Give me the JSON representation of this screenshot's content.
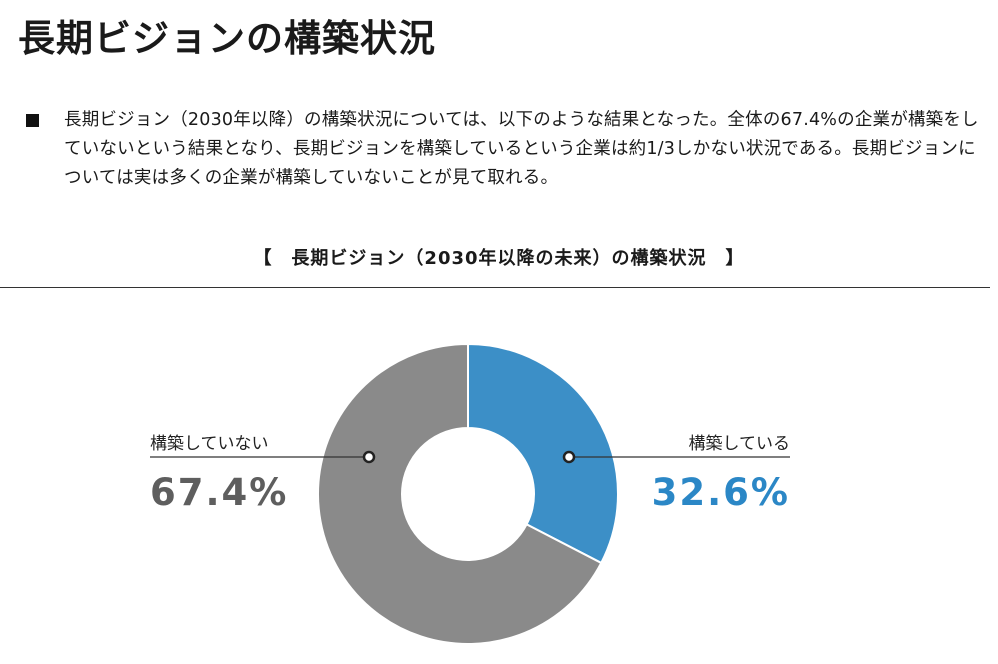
{
  "page": {
    "title": "長期ビジョンの構築状況",
    "summary": "長期ビジョン（2030年以降）の構築状況については、以下のような結果となった。全体の67.4%の企業が構築をしていないという結果となり、長期ビジョンを構築しているという企業は約1/3しかない状況である。長期ビジョンについては実は多くの企業が構築していないことが見て取れる。"
  },
  "chart_data": {
    "type": "pie",
    "title": "【　長期ビジョン（2030年以降の未来）の構築状況　】",
    "slices": [
      {
        "label": "構築している",
        "value": 32.6,
        "display": "32.6%",
        "color": "#3c8fc7",
        "value_color": "#2b87c6"
      },
      {
        "label": "構築していない",
        "value": 67.4,
        "display": "67.4%",
        "color": "#8a8a8a",
        "value_color": "#5e5e5e"
      }
    ],
    "unit": "%",
    "legend": "none"
  }
}
